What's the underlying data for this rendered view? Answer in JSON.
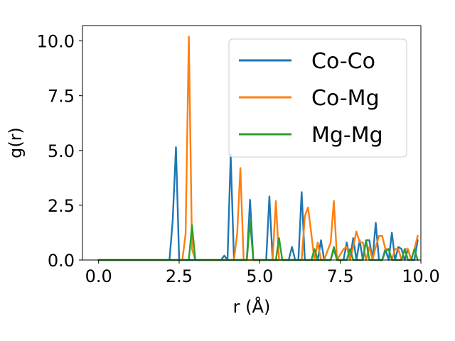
{
  "chart_data": {
    "type": "line",
    "title": "",
    "xlabel": "r (Å)",
    "ylabel": "g(r)",
    "xlim": [
      -0.5,
      10.0
    ],
    "ylim": [
      0,
      10.7
    ],
    "xticks": [
      0.0,
      2.5,
      5.0,
      7.5,
      10.0
    ],
    "xtick_labels": [
      "0.0",
      "2.5",
      "5.0",
      "7.5",
      "10.0"
    ],
    "yticks": [
      0.0,
      2.5,
      5.0,
      7.5,
      10.0
    ],
    "ytick_labels": [
      "0.0",
      "2.5",
      "5.0",
      "7.5",
      "10.0"
    ],
    "grid": false,
    "legend_position": "top-right",
    "series": [
      {
        "name": "Co-Co",
        "color": "#1f77b4",
        "x": [
          0.0,
          1.0,
          2.0,
          2.2,
          2.3,
          2.4,
          2.5,
          2.6,
          3.8,
          3.9,
          4.0,
          4.1,
          4.2,
          4.6,
          4.7,
          4.8,
          5.2,
          5.3,
          5.4,
          5.9,
          6.0,
          6.1,
          6.2,
          6.3,
          6.4,
          6.7,
          6.8,
          6.9,
          7.0,
          7.2,
          7.3,
          7.4,
          7.6,
          7.7,
          7.8,
          7.9,
          8.0,
          8.1,
          8.2,
          8.3,
          8.4,
          8.5,
          8.6,
          8.7,
          8.8,
          8.9,
          9.0,
          9.1,
          9.2,
          9.3,
          9.4,
          9.5,
          9.6,
          9.7,
          9.8,
          9.9
        ],
        "y": [
          0.0,
          0.0,
          0.0,
          0.0,
          1.8,
          5.15,
          0.0,
          0.0,
          0.0,
          0.2,
          0.0,
          4.8,
          0.0,
          0.0,
          2.75,
          0.0,
          0.0,
          2.9,
          0.0,
          0.0,
          0.6,
          0.0,
          0.0,
          3.1,
          0.0,
          0.0,
          0.0,
          0.9,
          0.0,
          0.0,
          0.5,
          0.0,
          0.0,
          0.8,
          0.0,
          1.0,
          0.0,
          0.9,
          0.0,
          0.9,
          0.9,
          0.0,
          1.7,
          0.0,
          0.0,
          0.5,
          0.0,
          1.25,
          0.0,
          0.6,
          0.5,
          0.0,
          0.5,
          0.0,
          0.0,
          0.9
        ]
      },
      {
        "name": "Co-Mg",
        "color": "#ff7f0e",
        "x": [
          0.0,
          1.0,
          2.0,
          2.6,
          2.7,
          2.8,
          2.9,
          3.0,
          3.5,
          4.0,
          4.2,
          4.3,
          4.4,
          4.5,
          5.3,
          5.4,
          5.5,
          5.6,
          5.7,
          6.2,
          6.3,
          6.4,
          6.5,
          6.7,
          6.8,
          6.9,
          7.0,
          7.1,
          7.2,
          7.3,
          7.4,
          7.6,
          7.7,
          7.8,
          7.9,
          8.0,
          8.1,
          8.2,
          8.3,
          8.4,
          8.5,
          8.6,
          8.7,
          8.8,
          8.9,
          9.0,
          9.1,
          9.2,
          9.3,
          9.4,
          9.5,
          9.6,
          9.7,
          9.8,
          9.9
        ],
        "y": [
          0.0,
          0.0,
          0.0,
          0.0,
          1.2,
          10.2,
          0.5,
          0.0,
          0.0,
          0.0,
          0.0,
          1.2,
          4.2,
          0.0,
          0.0,
          0.0,
          2.7,
          0.0,
          0.0,
          0.0,
          0.0,
          2.0,
          2.4,
          0.0,
          0.8,
          0.0,
          0.0,
          0.4,
          0.8,
          2.7,
          0.0,
          0.5,
          0.6,
          0.0,
          0.6,
          1.3,
          0.8,
          0.8,
          0.0,
          0.6,
          0.0,
          0.6,
          1.1,
          1.1,
          0.5,
          0.5,
          0.0,
          0.5,
          0.5,
          0.0,
          0.5,
          0.5,
          0.0,
          0.5,
          1.1
        ]
      },
      {
        "name": "Mg-Mg",
        "color": "#2ca02c",
        "x": [
          0.0,
          1.0,
          2.0,
          2.8,
          2.9,
          3.0,
          4.6,
          4.7,
          4.8,
          5.5,
          5.6,
          5.7,
          6.6,
          6.7,
          6.8,
          7.2,
          7.3,
          7.4,
          7.7,
          7.8,
          7.9,
          8.2,
          8.3,
          8.4,
          8.8,
          8.9,
          9.0,
          9.1,
          9.2,
          9.4,
          9.5,
          9.6,
          9.7,
          9.8,
          9.9
        ],
        "y": [
          0.0,
          0.0,
          0.0,
          0.0,
          1.6,
          0.0,
          0.0,
          1.8,
          0.0,
          0.0,
          1.0,
          0.0,
          0.0,
          0.5,
          0.0,
          0.0,
          0.6,
          0.0,
          0.0,
          0.5,
          0.0,
          0.0,
          0.9,
          0.0,
          0.0,
          0.4,
          0.5,
          0.0,
          0.0,
          0.0,
          0.5,
          0.0,
          0.0,
          0.5,
          0.0
        ]
      }
    ]
  }
}
